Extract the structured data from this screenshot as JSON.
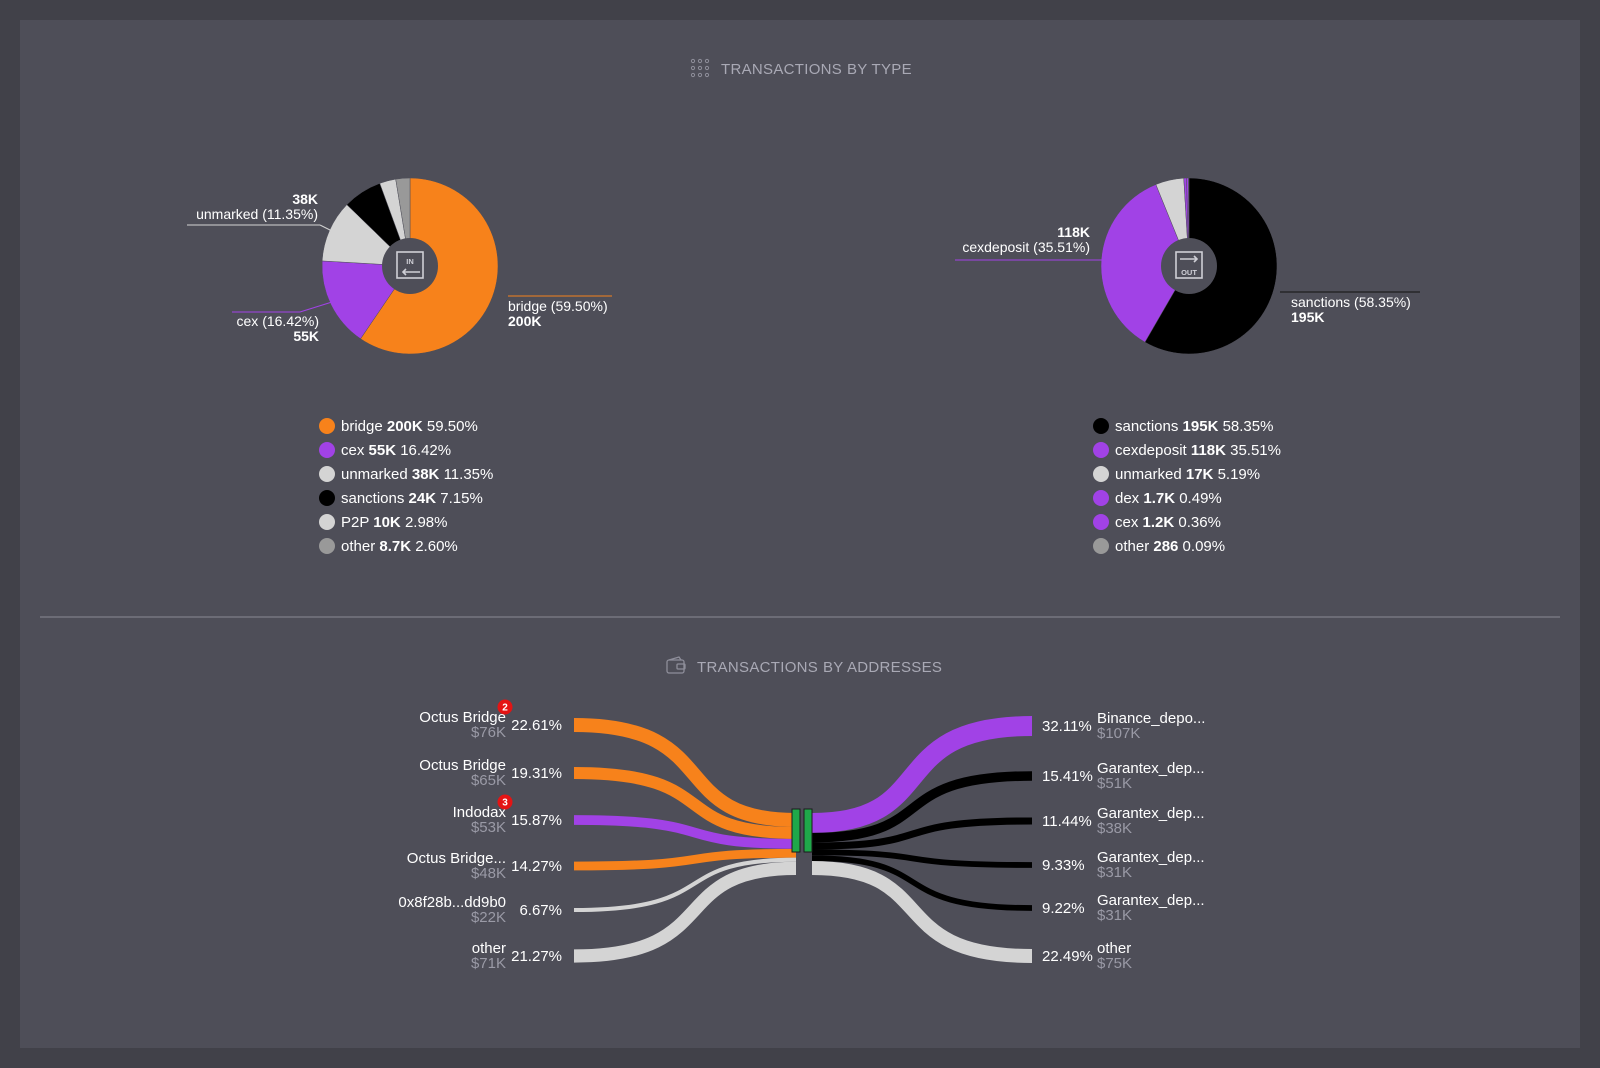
{
  "section_by_type": {
    "title_part1": "TRANSACTIONS",
    "title_part2": "BY TYPE",
    "icon": "grid-icon"
  },
  "section_by_addresses": {
    "title_part1": "TRANSACTIONS",
    "title_part2": "BY ADDRESSES",
    "icon": "wallet-icon"
  },
  "colors": {
    "bridge": "#f7821b",
    "cex": "#a142e6",
    "cexdeposit": "#a142e6",
    "dex": "#a142e6",
    "unmarked": "#d4d4d4",
    "sanctions": "#000000",
    "P2P": "#d4d4d4",
    "other": "#999999",
    "hub": "#1fa84a"
  },
  "chart_data": [
    {
      "type": "pie",
      "center_label": "IN",
      "slices": [
        {
          "label": "bridge",
          "value_text": "200K",
          "percent": 59.5
        },
        {
          "label": "cex",
          "value_text": "55K",
          "percent": 16.42
        },
        {
          "label": "unmarked",
          "value_text": "38K",
          "percent": 11.35
        },
        {
          "label": "sanctions",
          "value_text": "24K",
          "percent": 7.15
        },
        {
          "label": "P2P",
          "value_text": "10K",
          "percent": 2.98
        },
        {
          "label": "other",
          "value_text": "8.7K",
          "percent": 2.6
        }
      ],
      "callouts": [
        {
          "label": "bridge (59.50%)",
          "value": "200K"
        },
        {
          "label": "cex (16.42%)",
          "value": "55K"
        },
        {
          "label": "unmarked (11.35%)",
          "value": "38K"
        }
      ]
    },
    {
      "type": "pie",
      "center_label": "OUT",
      "slices": [
        {
          "label": "sanctions",
          "value_text": "195K",
          "percent": 58.35
        },
        {
          "label": "cexdeposit",
          "value_text": "118K",
          "percent": 35.51
        },
        {
          "label": "unmarked",
          "value_text": "17K",
          "percent": 5.19
        },
        {
          "label": "dex",
          "value_text": "1.7K",
          "percent": 0.49
        },
        {
          "label": "cex",
          "value_text": "1.2K",
          "percent": 0.36
        },
        {
          "label": "other",
          "value_text": "286",
          "percent": 0.09
        }
      ],
      "callouts": [
        {
          "label": "sanctions (58.35%)",
          "value": "195K"
        },
        {
          "label": "cexdeposit (35.51%)",
          "value": "118K"
        }
      ]
    },
    {
      "type": "sankey",
      "sources": [
        {
          "name": "Octus Bridge",
          "value": "$76K",
          "percent": "22.61%",
          "pct_value": 22.61,
          "category": "bridge",
          "badge": "2"
        },
        {
          "name": "Octus Bridge",
          "value": "$65K",
          "percent": "19.31%",
          "pct_value": 19.31,
          "category": "bridge",
          "badge": ""
        },
        {
          "name": "Indodax",
          "value": "$53K",
          "percent": "15.87%",
          "pct_value": 15.87,
          "category": "cex",
          "badge": "3"
        },
        {
          "name": "Octus Bridge...",
          "value": "$48K",
          "percent": "14.27%",
          "pct_value": 14.27,
          "category": "bridge",
          "badge": ""
        },
        {
          "name": "0x8f28b...dd9b0",
          "value": "$22K",
          "percent": "6.67%",
          "pct_value": 6.67,
          "category": "unmarked",
          "badge": ""
        },
        {
          "name": "other",
          "value": "$71K",
          "percent": "21.27%",
          "pct_value": 21.27,
          "category": "unmarked",
          "badge": ""
        }
      ],
      "targets": [
        {
          "name": "Binance_depo...",
          "value": "$107K",
          "percent": "32.11%",
          "pct_value": 32.11,
          "category": "cexdeposit"
        },
        {
          "name": "Garantex_dep...",
          "value": "$51K",
          "percent": "15.41%",
          "pct_value": 15.41,
          "category": "sanctions"
        },
        {
          "name": "Garantex_dep...",
          "value": "$38K",
          "percent": "11.44%",
          "pct_value": 11.44,
          "category": "sanctions"
        },
        {
          "name": "Garantex_dep...",
          "value": "$31K",
          "percent": "9.33%",
          "pct_value": 9.33,
          "category": "sanctions"
        },
        {
          "name": "Garantex_dep...",
          "value": "$31K",
          "percent": "9.22%",
          "pct_value": 9.22,
          "category": "sanctions"
        },
        {
          "name": "other",
          "value": "$75K",
          "percent": "22.49%",
          "pct_value": 22.49,
          "category": "unmarked"
        }
      ]
    }
  ]
}
